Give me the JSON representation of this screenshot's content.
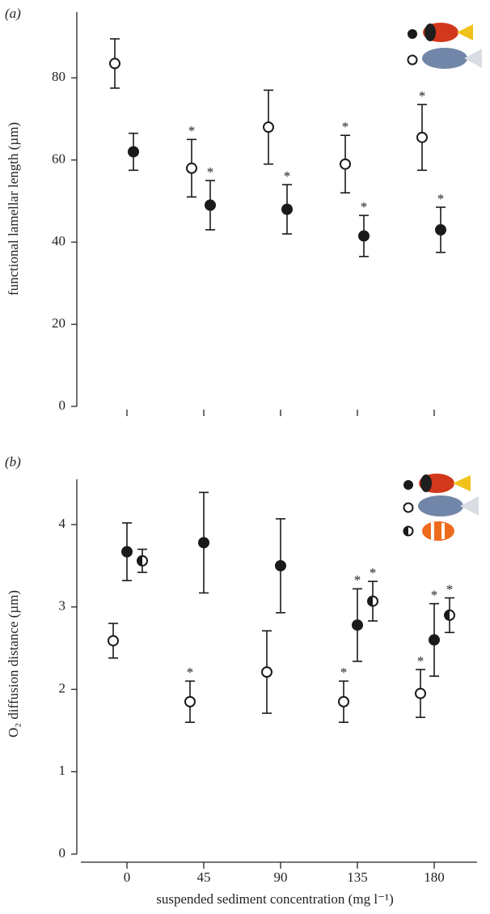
{
  "chart_data": [
    {
      "type": "scatter",
      "panel_label": "(a)",
      "ylabel": "functional lamellar length (µm)",
      "categories": [
        null,
        null,
        null,
        null,
        null
      ],
      "ylim": [
        0,
        96
      ],
      "yticks": [
        0,
        20,
        40,
        60,
        80
      ],
      "x_axis_line": false,
      "series": [
        {
          "marker": "open",
          "color": "#1a1a1a",
          "values": [
            83.5,
            58,
            68,
            59,
            65.5
          ],
          "errors": [
            6,
            7,
            9,
            7,
            8
          ],
          "significance": [
            null,
            "*",
            null,
            "*",
            "*"
          ]
        },
        {
          "marker": "filled",
          "color": "#1a1a1a",
          "values": [
            62,
            49,
            48,
            41.5,
            43
          ],
          "errors": [
            4.5,
            6,
            6,
            5,
            5.5
          ],
          "significance": [
            null,
            "*",
            "*",
            "*",
            "*"
          ]
        }
      ]
    },
    {
      "type": "scatter",
      "panel_label": "(b)",
      "ylabel": "O₂ diffusion distance (µm)",
      "xlabel": "suspended sediment concentration (mg l⁻¹)",
      "categories": [
        "0",
        "45",
        "90",
        "135",
        "180"
      ],
      "ylim": [
        0,
        4.55
      ],
      "yticks": [
        0,
        1,
        2,
        3,
        4
      ],
      "x_axis_line": true,
      "series": [
        {
          "marker": "filled",
          "color": "#1a1a1a",
          "values": [
            3.67,
            3.78,
            3.5,
            2.78,
            2.6
          ],
          "errors": [
            0.35,
            0.61,
            0.57,
            0.44,
            0.44
          ],
          "significance": [
            null,
            null,
            null,
            "*",
            "*"
          ]
        },
        {
          "marker": "open",
          "color": "#1a1a1a",
          "values": [
            2.59,
            1.85,
            2.21,
            1.85,
            1.95
          ],
          "errors": [
            0.21,
            0.25,
            0.5,
            0.25,
            0.29
          ],
          "significance": [
            null,
            "*",
            null,
            "*",
            "*"
          ]
        },
        {
          "marker": "half",
          "color": "#1a1a1a",
          "values": [
            3.56,
            null,
            null,
            3.07,
            2.9
          ],
          "errors": [
            0.14,
            null,
            null,
            0.24,
            0.21
          ],
          "significance": [
            null,
            null,
            null,
            "*",
            "*"
          ]
        }
      ]
    }
  ]
}
